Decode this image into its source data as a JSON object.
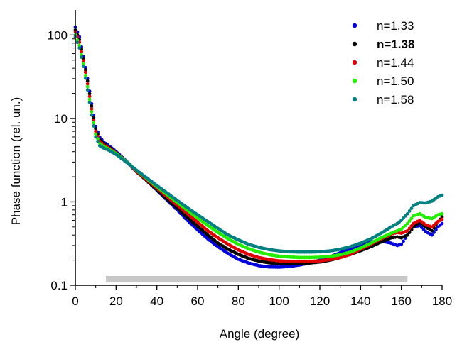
{
  "chart_data": {
    "type": "scatter",
    "title": "",
    "xlabel": "Angle (degree)",
    "ylabel": "Phase function (rel. un.)",
    "xlim": [
      0,
      180
    ],
    "ylim": [
      0.1,
      200
    ],
    "yscale": "log",
    "grid": false,
    "legend_position": "top-right",
    "x_ticks": [
      0,
      20,
      40,
      60,
      80,
      100,
      120,
      140,
      160,
      180
    ],
    "x_tick_labels": [
      "0",
      "20",
      "40",
      "60",
      "80",
      "100",
      "120",
      "140",
      "160",
      "180"
    ],
    "y_ticks": [
      0.1,
      1,
      10,
      100
    ],
    "y_tick_labels": [
      "0.1",
      "1",
      "10",
      "100"
    ],
    "band": {
      "x_start": 15,
      "x_end": 163,
      "y": 0.118,
      "color": "#c8c8c8"
    },
    "series": [
      {
        "name": "n=1.33",
        "color": "#0000dd",
        "bold": false,
        "x": [
          0,
          2,
          4,
          6,
          8,
          10,
          12,
          14,
          16,
          20,
          25,
          30,
          35,
          40,
          45,
          50,
          55,
          60,
          65,
          70,
          75,
          80,
          85,
          90,
          95,
          100,
          105,
          110,
          115,
          120,
          125,
          130,
          135,
          140,
          145,
          150,
          155,
          158,
          160,
          163,
          166,
          169,
          172,
          175,
          178,
          180
        ],
        "y": [
          125,
          95,
          55,
          30,
          15,
          8,
          5.9,
          5.2,
          4.8,
          4.0,
          3.1,
          2.35,
          1.8,
          1.38,
          1.05,
          0.8,
          0.6,
          0.46,
          0.36,
          0.29,
          0.24,
          0.205,
          0.185,
          0.172,
          0.166,
          0.165,
          0.168,
          0.175,
          0.185,
          0.2,
          0.22,
          0.245,
          0.27,
          0.3,
          0.33,
          0.34,
          0.32,
          0.3,
          0.31,
          0.4,
          0.5,
          0.52,
          0.44,
          0.4,
          0.5,
          0.55
        ]
      },
      {
        "name": "n=1.38",
        "color": "#000000",
        "bold": true,
        "x": [
          0,
          2,
          4,
          6,
          8,
          10,
          12,
          14,
          16,
          20,
          25,
          30,
          35,
          40,
          45,
          50,
          55,
          60,
          65,
          70,
          75,
          80,
          85,
          90,
          95,
          100,
          105,
          110,
          115,
          120,
          125,
          130,
          135,
          140,
          145,
          150,
          155,
          158,
          160,
          163,
          166,
          169,
          172,
          175,
          178,
          180
        ],
        "y": [
          115,
          88,
          52,
          28,
          14,
          7.5,
          5.6,
          5.0,
          4.6,
          3.9,
          3.05,
          2.3,
          1.8,
          1.4,
          1.08,
          0.84,
          0.65,
          0.51,
          0.4,
          0.32,
          0.27,
          0.235,
          0.21,
          0.195,
          0.186,
          0.182,
          0.181,
          0.182,
          0.185,
          0.19,
          0.2,
          0.215,
          0.235,
          0.26,
          0.29,
          0.33,
          0.37,
          0.38,
          0.37,
          0.4,
          0.5,
          0.57,
          0.5,
          0.45,
          0.58,
          0.66
        ]
      },
      {
        "name": "n=1.44",
        "color": "#e00000",
        "bold": false,
        "x": [
          0,
          2,
          4,
          6,
          8,
          10,
          12,
          14,
          16,
          20,
          25,
          30,
          35,
          40,
          45,
          50,
          55,
          60,
          65,
          70,
          75,
          80,
          85,
          90,
          95,
          100,
          105,
          110,
          115,
          120,
          125,
          130,
          135,
          140,
          145,
          150,
          155,
          158,
          160,
          163,
          166,
          169,
          172,
          175,
          178,
          180
        ],
        "y": [
          110,
          82,
          49,
          26,
          13,
          7,
          5.3,
          4.8,
          4.5,
          3.85,
          3.05,
          2.33,
          1.84,
          1.46,
          1.15,
          0.91,
          0.72,
          0.57,
          0.45,
          0.37,
          0.31,
          0.265,
          0.235,
          0.215,
          0.203,
          0.196,
          0.193,
          0.192,
          0.193,
          0.196,
          0.203,
          0.215,
          0.235,
          0.27,
          0.31,
          0.36,
          0.41,
          0.43,
          0.42,
          0.45,
          0.55,
          0.6,
          0.53,
          0.5,
          0.58,
          0.62
        ]
      },
      {
        "name": "n=1.50",
        "color": "#22ee00",
        "bold": false,
        "x": [
          0,
          2,
          4,
          6,
          8,
          10,
          12,
          14,
          16,
          20,
          25,
          30,
          35,
          40,
          45,
          50,
          55,
          60,
          65,
          70,
          75,
          80,
          85,
          90,
          95,
          100,
          105,
          110,
          115,
          120,
          125,
          130,
          135,
          140,
          145,
          150,
          155,
          158,
          160,
          163,
          166,
          169,
          172,
          175,
          178,
          180
        ],
        "y": [
          100,
          75,
          45,
          24,
          12,
          6.5,
          5.0,
          4.6,
          4.35,
          3.8,
          3.05,
          2.38,
          1.9,
          1.52,
          1.22,
          0.98,
          0.79,
          0.64,
          0.52,
          0.43,
          0.36,
          0.31,
          0.275,
          0.25,
          0.233,
          0.223,
          0.218,
          0.215,
          0.215,
          0.217,
          0.222,
          0.232,
          0.25,
          0.28,
          0.32,
          0.37,
          0.42,
          0.45,
          0.47,
          0.55,
          0.68,
          0.72,
          0.65,
          0.63,
          0.7,
          0.72
        ]
      },
      {
        "name": "n=1.58",
        "color": "#008080",
        "bold": false,
        "x": [
          0,
          2,
          4,
          6,
          8,
          10,
          12,
          14,
          16,
          20,
          25,
          30,
          35,
          40,
          45,
          50,
          55,
          60,
          65,
          70,
          75,
          80,
          85,
          90,
          95,
          100,
          105,
          110,
          115,
          120,
          125,
          130,
          135,
          140,
          145,
          150,
          155,
          158,
          160,
          163,
          166,
          169,
          172,
          175,
          178,
          180
        ],
        "y": [
          95,
          70,
          42,
          22,
          11,
          6,
          4.7,
          4.4,
          4.2,
          3.7,
          3.0,
          2.4,
          1.94,
          1.57,
          1.28,
          1.04,
          0.85,
          0.7,
          0.58,
          0.48,
          0.4,
          0.35,
          0.31,
          0.285,
          0.268,
          0.258,
          0.252,
          0.25,
          0.25,
          0.252,
          0.258,
          0.27,
          0.29,
          0.32,
          0.36,
          0.42,
          0.5,
          0.55,
          0.6,
          0.72,
          0.9,
          0.98,
          0.97,
          1.02,
          1.15,
          1.2
        ]
      }
    ]
  }
}
